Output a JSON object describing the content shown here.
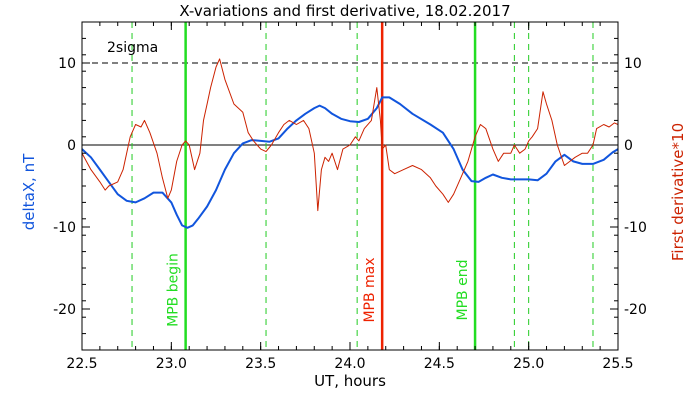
{
  "chart_data": {
    "type": "line",
    "title": "X-variations and first derivative, 18.02.2017",
    "xlabel": "UT, hours",
    "ylabel_left": "deltaX, nT",
    "ylabel_right": "First derivative*10",
    "xlim": [
      22.5,
      25.5
    ],
    "ylim": [
      -25,
      15
    ],
    "x_ticks": [
      22.5,
      23.0,
      23.5,
      24.0,
      24.5,
      25.0,
      25.5
    ],
    "x_tick_labels": [
      "22.5",
      "23.0",
      "23.5",
      "24.0",
      "24.5",
      "25.0",
      "25.5"
    ],
    "y_ticks": [
      -20,
      -10,
      0,
      10
    ],
    "y_tick_labels": [
      "-20",
      "-10",
      "0",
      "10"
    ],
    "annotation": "2sigma",
    "reference_lines": [
      {
        "y": 10,
        "style": "dashed",
        "color": "#000000"
      },
      {
        "y": 0,
        "style": "solid",
        "color": "#000000"
      }
    ],
    "vertical_markers": [
      {
        "x": 22.78,
        "style": "dashed",
        "color": "#22cc22",
        "label": ""
      },
      {
        "x": 23.08,
        "style": "solid",
        "color": "#22dd22",
        "label": "MPB begin"
      },
      {
        "x": 23.53,
        "style": "dashed",
        "color": "#22cc22",
        "label": ""
      },
      {
        "x": 24.04,
        "style": "dashed",
        "color": "#22cc22",
        "label": ""
      },
      {
        "x": 24.18,
        "style": "solid",
        "color": "#ee2200",
        "label": "MPB max"
      },
      {
        "x": 24.7,
        "style": "solid",
        "color": "#22dd22",
        "label": "MPB end"
      },
      {
        "x": 24.92,
        "style": "dashed",
        "color": "#22cc22",
        "label": ""
      },
      {
        "x": 25.0,
        "style": "dashed",
        "color": "#22cc22",
        "label": ""
      },
      {
        "x": 25.36,
        "style": "dashed",
        "color": "#22cc22",
        "label": ""
      }
    ],
    "series": [
      {
        "color": "#1155dd",
        "width": 2,
        "points": [
          [
            22.5,
            -0.5
          ],
          [
            22.55,
            -1.5
          ],
          [
            22.6,
            -3
          ],
          [
            22.65,
            -4.5
          ],
          [
            22.7,
            -6
          ],
          [
            22.75,
            -6.8
          ],
          [
            22.8,
            -7
          ],
          [
            22.85,
            -6.5
          ],
          [
            22.9,
            -5.8
          ],
          [
            22.95,
            -5.8
          ],
          [
            23.0,
            -7
          ],
          [
            23.03,
            -8.5
          ],
          [
            23.06,
            -9.8
          ],
          [
            23.09,
            -10.1
          ],
          [
            23.12,
            -9.8
          ],
          [
            23.15,
            -9
          ],
          [
            23.2,
            -7.5
          ],
          [
            23.25,
            -5.5
          ],
          [
            23.3,
            -3
          ],
          [
            23.35,
            -1
          ],
          [
            23.4,
            0.2
          ],
          [
            23.45,
            0.6
          ],
          [
            23.5,
            0.5
          ],
          [
            23.55,
            0.4
          ],
          [
            23.6,
            0.8
          ],
          [
            23.65,
            2
          ],
          [
            23.7,
            3
          ],
          [
            23.75,
            3.8
          ],
          [
            23.8,
            4.5
          ],
          [
            23.83,
            4.8
          ],
          [
            23.86,
            4.5
          ],
          [
            23.9,
            3.8
          ],
          [
            23.95,
            3.2
          ],
          [
            24.0,
            2.9
          ],
          [
            24.05,
            2.8
          ],
          [
            24.1,
            3.2
          ],
          [
            24.15,
            4.5
          ],
          [
            24.18,
            5.8
          ],
          [
            24.22,
            5.8
          ],
          [
            24.28,
            5
          ],
          [
            24.35,
            3.8
          ],
          [
            24.45,
            2.5
          ],
          [
            24.52,
            1.5
          ],
          [
            24.58,
            -0.5
          ],
          [
            24.63,
            -3
          ],
          [
            24.68,
            -4.4
          ],
          [
            24.72,
            -4.5
          ],
          [
            24.76,
            -4
          ],
          [
            24.8,
            -3.6
          ],
          [
            24.85,
            -4
          ],
          [
            24.9,
            -4.2
          ],
          [
            25.0,
            -4.2
          ],
          [
            25.05,
            -4.3
          ],
          [
            25.1,
            -3.5
          ],
          [
            25.15,
            -2
          ],
          [
            25.2,
            -1.2
          ],
          [
            25.25,
            -2
          ],
          [
            25.3,
            -2.3
          ],
          [
            25.36,
            -2.3
          ],
          [
            25.42,
            -1.8
          ],
          [
            25.47,
            -0.9
          ],
          [
            25.5,
            -0.5
          ]
        ]
      },
      {
        "color": "#cc2200",
        "width": 1,
        "points": [
          [
            22.5,
            -1
          ],
          [
            22.55,
            -3
          ],
          [
            22.6,
            -4.5
          ],
          [
            22.63,
            -5.5
          ],
          [
            22.65,
            -5
          ],
          [
            22.7,
            -4.5
          ],
          [
            22.73,
            -3
          ],
          [
            22.77,
            1
          ],
          [
            22.8,
            2.5
          ],
          [
            22.83,
            2.2
          ],
          [
            22.85,
            3
          ],
          [
            22.88,
            1.5
          ],
          [
            22.92,
            -1
          ],
          [
            22.95,
            -4
          ],
          [
            22.98,
            -6.5
          ],
          [
            23.0,
            -5.5
          ],
          [
            23.03,
            -2
          ],
          [
            23.06,
            0
          ],
          [
            23.08,
            0.5
          ],
          [
            23.1,
            0
          ],
          [
            23.13,
            -3
          ],
          [
            23.16,
            -1
          ],
          [
            23.18,
            3
          ],
          [
            23.2,
            5
          ],
          [
            23.22,
            7
          ],
          [
            23.25,
            9.5
          ],
          [
            23.27,
            10.5
          ],
          [
            23.3,
            8
          ],
          [
            23.35,
            5
          ],
          [
            23.4,
            4
          ],
          [
            23.43,
            1.5
          ],
          [
            23.46,
            0.5
          ],
          [
            23.5,
            -0.5
          ],
          [
            23.53,
            -0.8
          ],
          [
            23.56,
            0
          ],
          [
            23.6,
            1.5
          ],
          [
            23.63,
            2.5
          ],
          [
            23.66,
            3
          ],
          [
            23.7,
            2.5
          ],
          [
            23.74,
            3
          ],
          [
            23.77,
            2
          ],
          [
            23.8,
            -1
          ],
          [
            23.82,
            -8
          ],
          [
            23.84,
            -3
          ],
          [
            23.86,
            -1.5
          ],
          [
            23.88,
            -2
          ],
          [
            23.9,
            -1
          ],
          [
            23.93,
            -3
          ],
          [
            23.96,
            -0.5
          ],
          [
            24.0,
            0
          ],
          [
            24.03,
            1
          ],
          [
            24.05,
            0.5
          ],
          [
            24.08,
            2
          ],
          [
            24.12,
            3
          ],
          [
            24.15,
            7
          ],
          [
            24.17,
            3
          ],
          [
            24.18,
            -0.5
          ],
          [
            24.2,
            0
          ],
          [
            24.22,
            -3
          ],
          [
            24.25,
            -3.5
          ],
          [
            24.3,
            -3
          ],
          [
            24.35,
            -2.5
          ],
          [
            24.4,
            -3
          ],
          [
            24.45,
            -4
          ],
          [
            24.48,
            -5
          ],
          [
            24.52,
            -6
          ],
          [
            24.55,
            -7
          ],
          [
            24.58,
            -6
          ],
          [
            24.62,
            -4
          ],
          [
            24.66,
            -2
          ],
          [
            24.7,
            1
          ],
          [
            24.73,
            2.5
          ],
          [
            24.76,
            2
          ],
          [
            24.8,
            -0.5
          ],
          [
            24.83,
            -2
          ],
          [
            24.86,
            -1
          ],
          [
            24.9,
            -1
          ],
          [
            24.92,
            0
          ],
          [
            24.95,
            -1
          ],
          [
            24.98,
            -0.5
          ],
          [
            25.0,
            0.5
          ],
          [
            25.02,
            1
          ],
          [
            25.05,
            2
          ],
          [
            25.08,
            6.5
          ],
          [
            25.1,
            5
          ],
          [
            25.13,
            3
          ],
          [
            25.16,
            0
          ],
          [
            25.2,
            -2.5
          ],
          [
            25.23,
            -2
          ],
          [
            25.26,
            -1.5
          ],
          [
            25.3,
            -1
          ],
          [
            25.33,
            -1
          ],
          [
            25.36,
            0
          ],
          [
            25.38,
            2
          ],
          [
            25.42,
            2.5
          ],
          [
            25.45,
            2.2
          ],
          [
            25.48,
            2.7
          ],
          [
            25.5,
            2.5
          ]
        ]
      }
    ]
  }
}
